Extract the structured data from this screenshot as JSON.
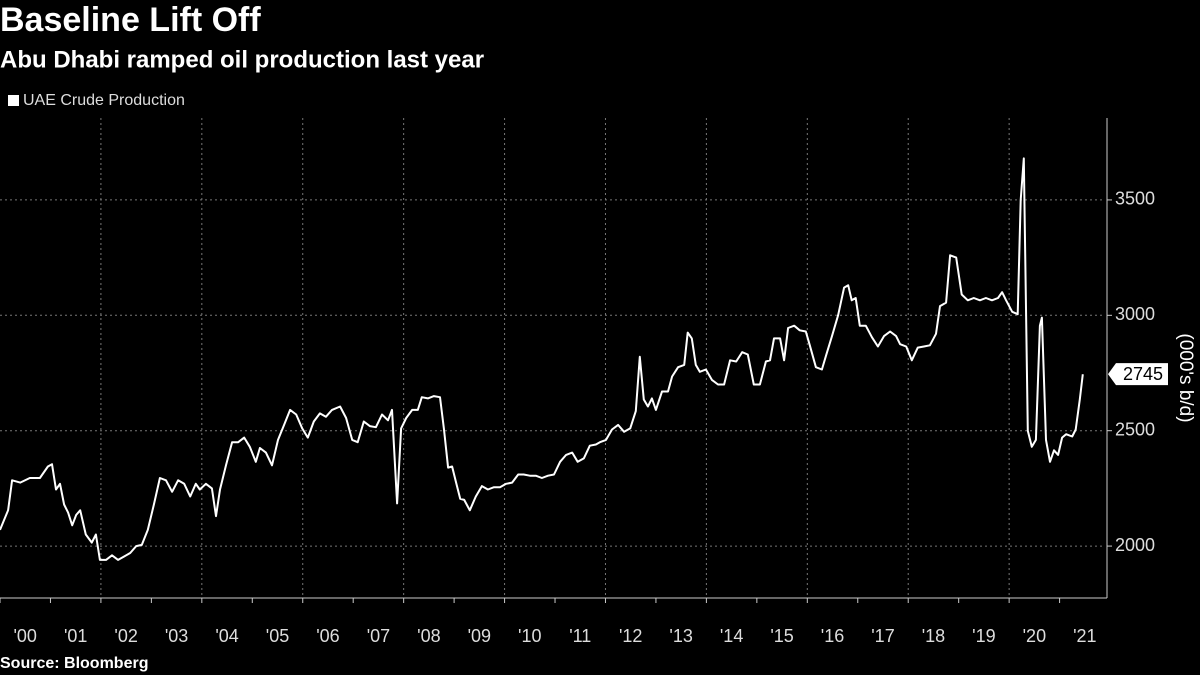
{
  "chart_data": {
    "type": "line",
    "title": "Baseline Lift Off",
    "subtitle": "Abu Dhabi ramped oil production last year",
    "y_label": "(000's b/d)",
    "source": "Source: Bloomberg",
    "x": [
      2000.0,
      2000.16,
      2000.24,
      2000.4,
      2000.59,
      2000.79,
      2000.95,
      2001.03,
      2001.11,
      2001.19,
      2001.27,
      2001.35,
      2001.43,
      2001.51,
      2001.59,
      2001.7,
      2001.82,
      2001.9,
      2001.98,
      2002.1,
      2002.22,
      2002.34,
      2002.46,
      2002.58,
      2002.7,
      2002.81,
      2002.93,
      2003.05,
      2003.17,
      2003.29,
      2003.41,
      2003.53,
      2003.65,
      2003.77,
      2003.88,
      2003.96,
      2004.08,
      2004.2,
      2004.28,
      2004.36,
      2004.48,
      2004.6,
      2004.72,
      2004.84,
      2004.95,
      2005.07,
      2005.15,
      2005.27,
      2005.39,
      2005.51,
      2005.63,
      2005.75,
      2005.87,
      2005.99,
      2006.1,
      2006.22,
      2006.34,
      2006.46,
      2006.58,
      2006.74,
      2006.86,
      2006.98,
      2007.09,
      2007.21,
      2007.33,
      2007.45,
      2007.57,
      2007.69,
      2007.77,
      2007.87,
      2007.95,
      2008.05,
      2008.17,
      2008.28,
      2008.36,
      2008.48,
      2008.6,
      2008.72,
      2008.8,
      2008.88,
      2008.96,
      2009.04,
      2009.12,
      2009.2,
      2009.31,
      2009.43,
      2009.55,
      2009.67,
      2009.79,
      2009.91,
      2010.03,
      2010.15,
      2010.27,
      2010.38,
      2010.5,
      2010.62,
      2010.74,
      2010.86,
      2010.98,
      2011.1,
      2011.22,
      2011.34,
      2011.45,
      2011.57,
      2011.69,
      2011.81,
      2011.89,
      2012.01,
      2012.13,
      2012.25,
      2012.37,
      2012.49,
      2012.6,
      2012.68,
      2012.76,
      2012.84,
      2012.92,
      2013.0,
      2013.12,
      2013.24,
      2013.32,
      2013.44,
      2013.56,
      2013.63,
      2013.71,
      2013.79,
      2013.87,
      2013.99,
      2014.11,
      2014.23,
      2014.35,
      2014.47,
      2014.59,
      2014.71,
      2014.82,
      2014.94,
      2015.06,
      2015.18,
      2015.26,
      2015.34,
      2015.46,
      2015.54,
      2015.62,
      2015.74,
      2015.85,
      2015.97,
      2016.05,
      2016.17,
      2016.29,
      2016.37,
      2016.49,
      2016.61,
      2016.73,
      2016.81,
      2016.88,
      2016.96,
      2017.04,
      2017.16,
      2017.28,
      2017.4,
      2017.52,
      2017.64,
      2017.76,
      2017.84,
      2017.96,
      2018.07,
      2018.19,
      2018.31,
      2018.43,
      2018.55,
      2018.63,
      2018.75,
      2018.83,
      2018.95,
      2019.06,
      2019.18,
      2019.3,
      2019.42,
      2019.54,
      2019.66,
      2019.78,
      2019.86,
      2019.94,
      2020.06,
      2020.17,
      2020.23,
      2020.29,
      2020.37,
      2020.45,
      2020.53,
      2020.61,
      2020.65,
      2020.73,
      2020.81,
      2020.89,
      2020.97,
      2021.05,
      2021.13,
      2021.25,
      2021.32,
      2021.4,
      2021.46
    ],
    "series": [
      {
        "name": "UAE Crude Production",
        "color": "#ffffff",
        "values": [
          2070,
          2155,
          2285,
          2275,
          2295,
          2295,
          2345,
          2355,
          2245,
          2270,
          2180,
          2145,
          2090,
          2135,
          2155,
          2050,
          2015,
          2050,
          1940,
          1940,
          1960,
          1940,
          1955,
          1970,
          2000,
          2005,
          2070,
          2180,
          2295,
          2285,
          2235,
          2285,
          2270,
          2215,
          2270,
          2245,
          2270,
          2250,
          2130,
          2245,
          2350,
          2450,
          2450,
          2470,
          2430,
          2365,
          2425,
          2405,
          2350,
          2460,
          2525,
          2590,
          2570,
          2510,
          2470,
          2540,
          2575,
          2560,
          2590,
          2605,
          2555,
          2460,
          2450,
          2540,
          2520,
          2515,
          2570,
          2545,
          2590,
          2185,
          2510,
          2555,
          2590,
          2590,
          2645,
          2640,
          2650,
          2645,
          2505,
          2340,
          2345,
          2275,
          2205,
          2200,
          2155,
          2215,
          2260,
          2245,
          2255,
          2255,
          2270,
          2275,
          2310,
          2310,
          2305,
          2305,
          2295,
          2305,
          2310,
          2365,
          2395,
          2405,
          2365,
          2380,
          2435,
          2440,
          2450,
          2460,
          2505,
          2525,
          2495,
          2510,
          2585,
          2820,
          2635,
          2605,
          2640,
          2590,
          2670,
          2670,
          2735,
          2775,
          2785,
          2925,
          2900,
          2785,
          2755,
          2765,
          2720,
          2700,
          2700,
          2805,
          2800,
          2840,
          2830,
          2700,
          2700,
          2800,
          2805,
          2900,
          2900,
          2805,
          2945,
          2955,
          2935,
          2930,
          2870,
          2775,
          2765,
          2825,
          2910,
          3000,
          3120,
          3130,
          3065,
          3075,
          2955,
          2955,
          2905,
          2865,
          2910,
          2930,
          2910,
          2875,
          2865,
          2805,
          2860,
          2865,
          2870,
          2920,
          3040,
          3055,
          3260,
          3250,
          3090,
          3065,
          3075,
          3065,
          3075,
          3065,
          3075,
          3100,
          3065,
          3015,
          3005,
          3500,
          3680,
          2500,
          2430,
          2460,
          2955,
          2990,
          2460,
          2365,
          2415,
          2395,
          2470,
          2485,
          2475,
          2505,
          2635,
          2745
        ]
      }
    ],
    "xlim": [
      2000,
      2021.9
    ],
    "xticks": [
      {
        "value": 2000,
        "label": "'00"
      },
      {
        "value": 2001,
        "label": "'01"
      },
      {
        "value": 2002,
        "label": "'02"
      },
      {
        "value": 2003,
        "label": "'03"
      },
      {
        "value": 2004,
        "label": "'04"
      },
      {
        "value": 2005,
        "label": "'05"
      },
      {
        "value": 2006,
        "label": "'06"
      },
      {
        "value": 2007,
        "label": "'07"
      },
      {
        "value": 2008,
        "label": "'08"
      },
      {
        "value": 2009,
        "label": "'09"
      },
      {
        "value": 2010,
        "label": "'10"
      },
      {
        "value": 2011,
        "label": "'11"
      },
      {
        "value": 2012,
        "label": "'12"
      },
      {
        "value": 2013,
        "label": "'13"
      },
      {
        "value": 2014,
        "label": "'14"
      },
      {
        "value": 2015,
        "label": "'15"
      },
      {
        "value": 2016,
        "label": "'16"
      },
      {
        "value": 2017,
        "label": "'17"
      },
      {
        "value": 2018,
        "label": "'18"
      },
      {
        "value": 2019,
        "label": "'19"
      },
      {
        "value": 2020,
        "label": "'20"
      },
      {
        "value": 2021,
        "label": "'21"
      }
    ],
    "ylim": [
      1775,
      3855
    ],
    "yticks": [
      2000,
      2500,
      3000,
      3500
    ],
    "grid": true,
    "legend": "top-left"
  }
}
